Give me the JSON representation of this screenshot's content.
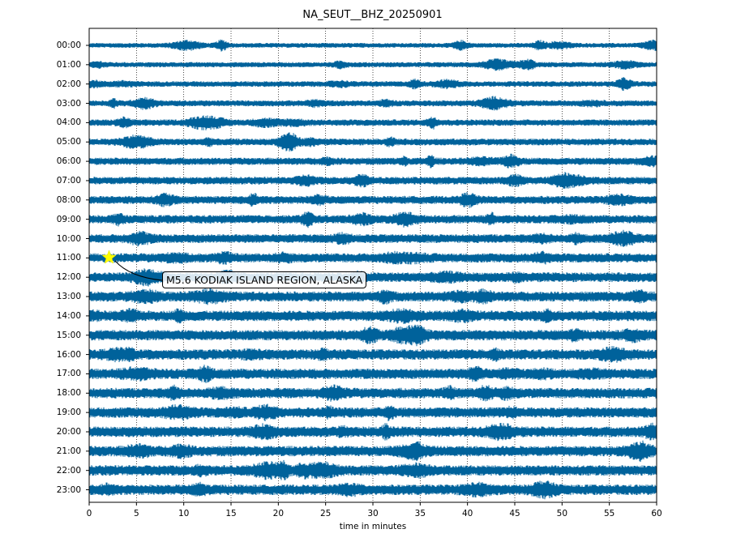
{
  "chart_data": {
    "type": "line",
    "title": "NA_SEUT__BHZ_20250901",
    "xlabel": "time in minutes",
    "ylabel": "",
    "xlim": [
      0,
      60
    ],
    "x_ticks": [
      "0",
      "5",
      "10",
      "15",
      "20",
      "25",
      "30",
      "35",
      "40",
      "45",
      "50",
      "55",
      "60"
    ],
    "rows": [
      "00:00",
      "01:00",
      "02:00",
      "03:00",
      "04:00",
      "05:00",
      "06:00",
      "07:00",
      "08:00",
      "09:00",
      "10:00",
      "11:00",
      "12:00",
      "13:00",
      "14:00",
      "15:00",
      "16:00",
      "17:00",
      "18:00",
      "19:00",
      "20:00",
      "21:00",
      "22:00",
      "23:00"
    ],
    "grid": "vertical dotted",
    "trace_color": "#00629b",
    "event": {
      "label": "M5.6 KODIAK ISLAND REGION, ALASKA",
      "row": "11:00",
      "minute": 2.1,
      "marker": "star",
      "marker_color": "#ffff00"
    }
  }
}
